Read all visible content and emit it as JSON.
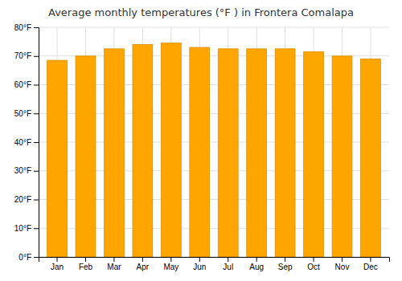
{
  "chart_data": {
    "type": "bar",
    "title": "Average monthly temperatures (°F ) in Frontera Comalapa",
    "categories": [
      "Jan",
      "Feb",
      "Mar",
      "Apr",
      "May",
      "Jun",
      "Jul",
      "Aug",
      "Sep",
      "Oct",
      "Nov",
      "Dec"
    ],
    "values": [
      68.5,
      70.0,
      72.5,
      74.0,
      74.5,
      73.0,
      72.5,
      72.5,
      72.5,
      71.5,
      70.0,
      69.0
    ],
    "color": "#FFA500",
    "ylim": [
      0,
      80
    ],
    "yticks": [
      {
        "value": 0,
        "label": "0°F"
      },
      {
        "value": 10,
        "label": "10°F"
      },
      {
        "value": 20,
        "label": "20°F"
      },
      {
        "value": 30,
        "label": "30°F"
      },
      {
        "value": 40,
        "label": "40°F"
      },
      {
        "value": 50,
        "label": "50°F"
      },
      {
        "value": 60,
        "label": "60°F"
      },
      {
        "value": 70,
        "label": "70°F"
      },
      {
        "value": 80,
        "label": "80°F"
      }
    ],
    "grid": true
  }
}
